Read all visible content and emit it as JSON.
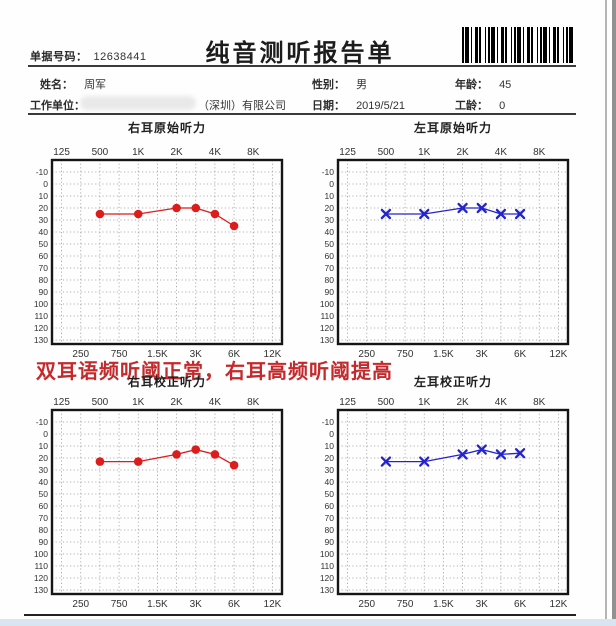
{
  "report": {
    "doc_no_label": "单据号码：",
    "doc_no": "12638441",
    "title": "纯音测听报告单",
    "barcode": "barcode-image",
    "fields": {
      "name_label": "姓名：",
      "name": "周军",
      "gender_label": "性别：",
      "gender": "男",
      "age_label": "年龄：",
      "age": "45",
      "company_label": "工作单位：",
      "company_redacted": "(涂抹遮盖)",
      "company_visible": "（深圳）有限公司",
      "date_label": "日期：",
      "date": "2019/5/21",
      "work_years_label": "工龄：",
      "work_years": "0"
    },
    "annotation": "双耳语频听阈正常，右耳高频听阈提高",
    "annotation_color": "#c4292c"
  },
  "colors": {
    "right_ear": "#dd1c1c",
    "left_ear": "#2424cc",
    "grid": "#9b9b9b",
    "frame": "#151515"
  },
  "chart_data": [
    {
      "type": "line",
      "title": "右耳原始听力",
      "marker": "circle",
      "color": "#dd1c1c",
      "xlabel": "",
      "ylabel": "",
      "ylim": [
        -10,
        130
      ],
      "grid": true,
      "x_all": [
        "125",
        "250",
        "500",
        "750",
        "1K",
        "1.5K",
        "2K",
        "3K",
        "4K",
        "6K",
        "8K",
        "12K"
      ],
      "x_ticks_top": [
        "125",
        "500",
        "1K",
        "2K",
        "4K",
        "8K"
      ],
      "x_ticks_bottom": [
        "250",
        "750",
        "1.5K",
        "3K",
        "6K",
        "12K"
      ],
      "y_ticks": [
        -10,
        0,
        10,
        20,
        30,
        40,
        50,
        60,
        70,
        80,
        90,
        100,
        110,
        120,
        130
      ],
      "points": [
        {
          "freq": "500",
          "db": 25
        },
        {
          "freq": "1K",
          "db": 25
        },
        {
          "freq": "2K",
          "db": 20
        },
        {
          "freq": "3K",
          "db": 20
        },
        {
          "freq": "4K",
          "db": 25
        },
        {
          "freq": "6K",
          "db": 35
        }
      ]
    },
    {
      "type": "line",
      "title": "左耳原始听力",
      "marker": "x",
      "color": "#2424cc",
      "xlabel": "",
      "ylabel": "",
      "ylim": [
        -10,
        130
      ],
      "grid": true,
      "x_all": [
        "125",
        "250",
        "500",
        "750",
        "1K",
        "1.5K",
        "2K",
        "3K",
        "4K",
        "6K",
        "8K",
        "12K"
      ],
      "x_ticks_top": [
        "125",
        "500",
        "1K",
        "2K",
        "4K",
        "8K"
      ],
      "x_ticks_bottom": [
        "250",
        "750",
        "1.5K",
        "3K",
        "6K",
        "12K"
      ],
      "y_ticks": [
        -10,
        0,
        10,
        20,
        30,
        40,
        50,
        60,
        70,
        80,
        90,
        100,
        110,
        120,
        130
      ],
      "points": [
        {
          "freq": "500",
          "db": 25
        },
        {
          "freq": "1K",
          "db": 25
        },
        {
          "freq": "2K",
          "db": 20
        },
        {
          "freq": "3K",
          "db": 20
        },
        {
          "freq": "4K",
          "db": 25
        },
        {
          "freq": "6K",
          "db": 25
        }
      ]
    },
    {
      "type": "line",
      "title": "右耳校正听力",
      "marker": "circle",
      "color": "#dd1c1c",
      "xlabel": "",
      "ylabel": "",
      "ylim": [
        -10,
        130
      ],
      "grid": true,
      "x_all": [
        "125",
        "250",
        "500",
        "750",
        "1K",
        "1.5K",
        "2K",
        "3K",
        "4K",
        "6K",
        "8K",
        "12K"
      ],
      "x_ticks_top": [
        "125",
        "500",
        "1K",
        "2K",
        "4K",
        "8K"
      ],
      "x_ticks_bottom": [
        "250",
        "750",
        "1.5K",
        "3K",
        "6K",
        "12K"
      ],
      "y_ticks": [
        -10,
        0,
        10,
        20,
        30,
        40,
        50,
        60,
        70,
        80,
        90,
        100,
        110,
        120,
        130
      ],
      "points": [
        {
          "freq": "500",
          "db": 23
        },
        {
          "freq": "1K",
          "db": 23
        },
        {
          "freq": "2K",
          "db": 17
        },
        {
          "freq": "3K",
          "db": 13
        },
        {
          "freq": "4K",
          "db": 17
        },
        {
          "freq": "6K",
          "db": 26
        }
      ]
    },
    {
      "type": "line",
      "title": "左耳校正听力",
      "marker": "x",
      "color": "#2424cc",
      "xlabel": "",
      "ylabel": "",
      "ylim": [
        -10,
        130
      ],
      "grid": true,
      "x_all": [
        "125",
        "250",
        "500",
        "750",
        "1K",
        "1.5K",
        "2K",
        "3K",
        "4K",
        "6K",
        "8K",
        "12K"
      ],
      "x_ticks_top": [
        "125",
        "500",
        "1K",
        "2K",
        "4K",
        "8K"
      ],
      "x_ticks_bottom": [
        "250",
        "750",
        "1.5K",
        "3K",
        "6K",
        "12K"
      ],
      "y_ticks": [
        -10,
        0,
        10,
        20,
        30,
        40,
        50,
        60,
        70,
        80,
        90,
        100,
        110,
        120,
        130
      ],
      "points": [
        {
          "freq": "500",
          "db": 23
        },
        {
          "freq": "1K",
          "db": 23
        },
        {
          "freq": "2K",
          "db": 17
        },
        {
          "freq": "3K",
          "db": 13
        },
        {
          "freq": "4K",
          "db": 17
        },
        {
          "freq": "6K",
          "db": 16
        }
      ]
    }
  ]
}
